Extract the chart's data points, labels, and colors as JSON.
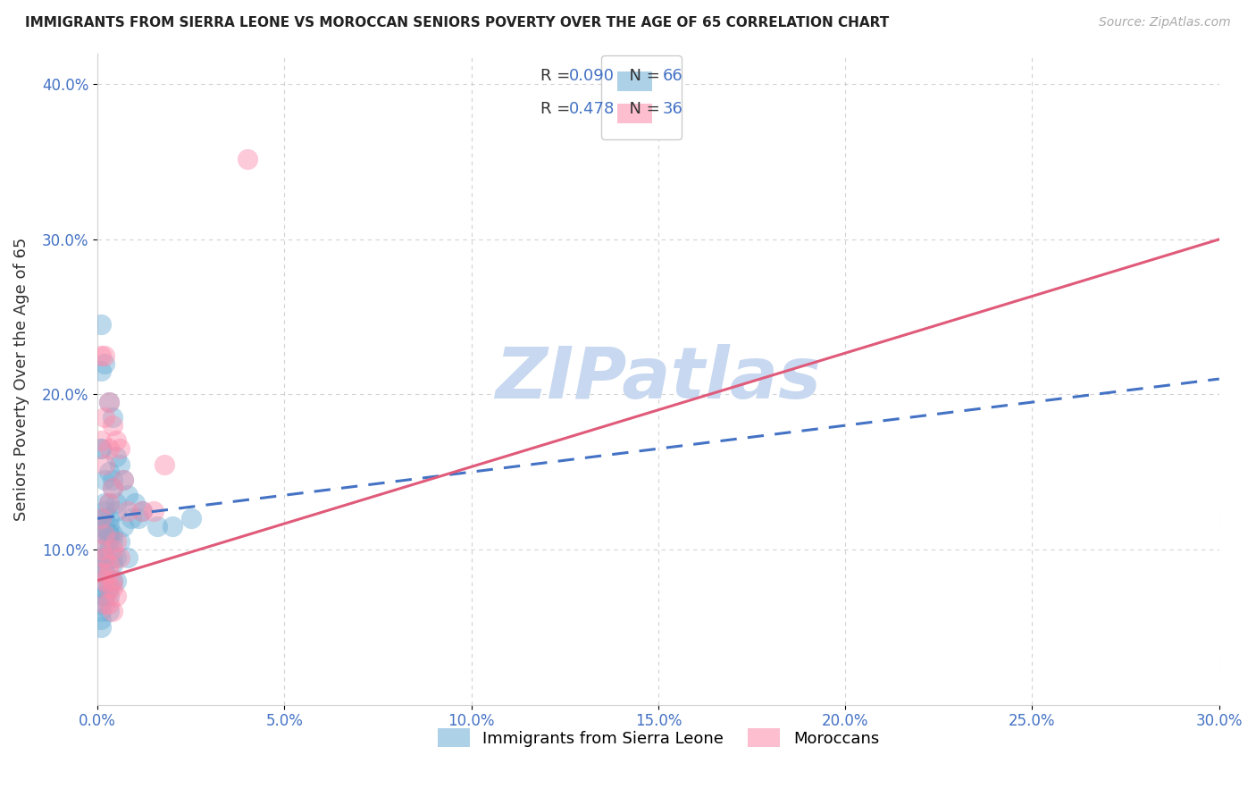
{
  "title": "IMMIGRANTS FROM SIERRA LEONE VS MOROCCAN SENIORS POVERTY OVER THE AGE OF 65 CORRELATION CHART",
  "source": "Source: ZipAtlas.com",
  "ylabel": "Seniors Poverty Over the Age of 65",
  "xtick_labels": [
    "0.0%",
    "5.0%",
    "10.0%",
    "15.0%",
    "20.0%",
    "25.0%",
    "30.0%"
  ],
  "xtick_vals": [
    0.0,
    0.05,
    0.1,
    0.15,
    0.2,
    0.25,
    0.3
  ],
  "ytick_labels": [
    "10.0%",
    "20.0%",
    "30.0%",
    "40.0%"
  ],
  "ytick_vals": [
    0.1,
    0.2,
    0.3,
    0.4
  ],
  "xlim": [
    0.0,
    0.3
  ],
  "ylim": [
    0.0,
    0.42
  ],
  "legend_label1": "Immigrants from Sierra Leone",
  "legend_label2": "Moroccans",
  "R1": "0.090",
  "N1": "66",
  "R2": "0.478",
  "N2": "36",
  "color1": "#6baed6",
  "color2": "#fc8bab",
  "line_color1": "#4472c4",
  "line_color2": "#e05a7a",
  "watermark_text": "ZIPatlas",
  "watermark_color": "#c8d8f0",
  "sl_line_x0": 0.0,
  "sl_line_y0": 0.12,
  "sl_line_x1": 0.3,
  "sl_line_y1": 0.21,
  "mo_line_x0": 0.0,
  "mo_line_y0": 0.08,
  "mo_line_x1": 0.3,
  "mo_line_y1": 0.3,
  "sierra_leone_x": [
    0.001,
    0.001,
    0.001,
    0.001,
    0.001,
    0.002,
    0.002,
    0.002,
    0.002,
    0.002,
    0.002,
    0.002,
    0.003,
    0.003,
    0.003,
    0.003,
    0.003,
    0.003,
    0.004,
    0.004,
    0.004,
    0.004,
    0.005,
    0.005,
    0.005,
    0.006,
    0.006,
    0.007,
    0.007,
    0.008,
    0.008,
    0.009,
    0.01,
    0.001,
    0.001,
    0.002,
    0.002,
    0.003,
    0.003,
    0.004,
    0.004,
    0.005,
    0.005,
    0.001,
    0.001,
    0.002,
    0.003,
    0.004,
    0.001,
    0.002,
    0.003,
    0.004,
    0.002,
    0.003,
    0.002,
    0.001,
    0.001,
    0.001,
    0.002,
    0.003,
    0.001,
    0.011,
    0.012,
    0.02,
    0.016,
    0.025
  ],
  "sierra_leone_y": [
    0.245,
    0.165,
    0.095,
    0.075,
    0.06,
    0.22,
    0.145,
    0.12,
    0.105,
    0.095,
    0.085,
    0.07,
    0.195,
    0.15,
    0.12,
    0.11,
    0.1,
    0.07,
    0.185,
    0.14,
    0.11,
    0.08,
    0.16,
    0.13,
    0.095,
    0.155,
    0.105,
    0.145,
    0.115,
    0.135,
    0.095,
    0.12,
    0.13,
    0.215,
    0.115,
    0.13,
    0.085,
    0.13,
    0.075,
    0.145,
    0.09,
    0.125,
    0.08,
    0.165,
    0.09,
    0.115,
    0.11,
    0.105,
    0.12,
    0.11,
    0.105,
    0.095,
    0.125,
    0.115,
    0.095,
    0.065,
    0.055,
    0.05,
    0.07,
    0.06,
    0.08,
    0.12,
    0.125,
    0.115,
    0.115,
    0.12
  ],
  "moroccan_x": [
    0.001,
    0.001,
    0.001,
    0.002,
    0.002,
    0.002,
    0.002,
    0.003,
    0.003,
    0.003,
    0.003,
    0.004,
    0.004,
    0.004,
    0.005,
    0.005,
    0.006,
    0.006,
    0.007,
    0.008,
    0.001,
    0.002,
    0.003,
    0.004,
    0.001,
    0.002,
    0.003,
    0.004,
    0.005,
    0.002,
    0.003,
    0.004,
    0.012,
    0.015,
    0.018,
    0.04
  ],
  "moroccan_y": [
    0.225,
    0.17,
    0.12,
    0.225,
    0.185,
    0.155,
    0.11,
    0.195,
    0.165,
    0.13,
    0.09,
    0.18,
    0.14,
    0.1,
    0.17,
    0.105,
    0.165,
    0.095,
    0.145,
    0.125,
    0.1,
    0.095,
    0.085,
    0.08,
    0.085,
    0.08,
    0.075,
    0.075,
    0.07,
    0.065,
    0.065,
    0.06,
    0.125,
    0.125,
    0.155,
    0.352
  ]
}
